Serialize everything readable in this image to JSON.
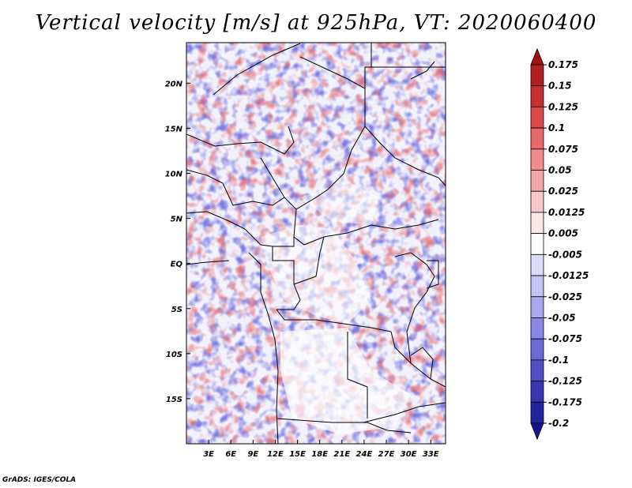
{
  "title": "Vertical velocity [m/s] at 925hPa, VT: 2020060400",
  "credit": "GrADS: IGES/COLA",
  "map": {
    "lon_range": [
      0,
      35.0
    ],
    "lat_range": [
      -20,
      24.5
    ],
    "x_ticks": [
      "3E",
      "6E",
      "9E",
      "12E",
      "15E",
      "18E",
      "21E",
      "24E",
      "27E",
      "30E",
      "33E"
    ],
    "x_tick_values": [
      3,
      6,
      9,
      12,
      15,
      18,
      21,
      24,
      27,
      30,
      33
    ],
    "y_ticks": [
      "20N",
      "15N",
      "10N",
      "5N",
      "EQ",
      "5S",
      "10S",
      "15S"
    ],
    "y_tick_values": [
      20,
      15,
      10,
      5,
      0,
      -5,
      -10,
      -15
    ]
  },
  "colorbar": {
    "labels": [
      "0.175",
      "0.15",
      "0.125",
      "0.1",
      "0.075",
      "0.05",
      "0.025",
      "0.0125",
      "0.005",
      "-0.005",
      "-0.0125",
      "-0.025",
      "-0.05",
      "-0.075",
      "-0.1",
      "-0.125",
      "-0.175",
      "-0.2"
    ],
    "colors": [
      "#a01010",
      "#b02020",
      "#c83030",
      "#dc4848",
      "#e86868",
      "#f08c8c",
      "#f4a8a8",
      "#f8c8c8",
      "#fce6e6",
      "#ffffff",
      "#dcdcfa",
      "#c4c4f4",
      "#a8a8ee",
      "#8888e6",
      "#6a6ad6",
      "#5050c4",
      "#3838b0",
      "#24249c",
      "#12128a"
    ]
  }
}
